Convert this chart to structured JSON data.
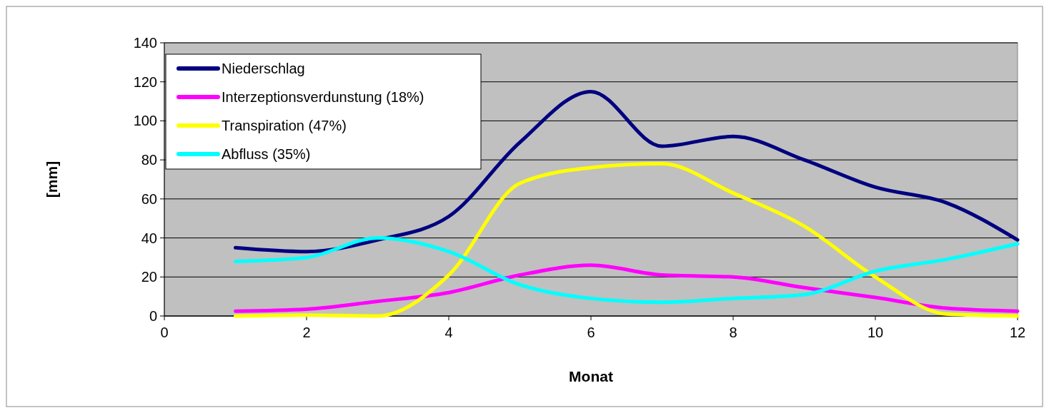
{
  "chart_data": {
    "type": "line",
    "xlabel": "Monat",
    "ylabel": "[mm]",
    "x": [
      1,
      2,
      3,
      4,
      5,
      6,
      7,
      8,
      9,
      10,
      11,
      12
    ],
    "xlim": [
      0,
      12
    ],
    "xticks": [
      0,
      2,
      4,
      6,
      8,
      10,
      12
    ],
    "ylim": [
      0,
      140
    ],
    "yticks": [
      0,
      20,
      40,
      60,
      80,
      100,
      120,
      140
    ],
    "grid": "y",
    "legend": "top left",
    "marker": "none",
    "line_style": "solid",
    "series": [
      {
        "name": "Niederschlag",
        "color": "#000080",
        "values": [
          35,
          33,
          39,
          51,
          89,
          115,
          87,
          92,
          80,
          66,
          58,
          39
        ]
      },
      {
        "name": "Interzeptionsverdunstung (18%)",
        "color": "#ff00ff",
        "values": [
          2.5,
          3.5,
          7.5,
          12,
          21,
          26,
          21,
          20,
          14.5,
          9.5,
          4,
          2.5
        ]
      },
      {
        "name": "Transpiration (47%)",
        "color": "#ffff00",
        "values": [
          0,
          0.5,
          0,
          21,
          68,
          76,
          78,
          63,
          46,
          20,
          1,
          0
        ]
      },
      {
        "name": "Abfluss (35%)",
        "color": "#00ffff",
        "values": [
          28,
          30,
          40,
          33,
          16,
          9,
          7,
          9,
          11,
          23,
          29,
          37
        ]
      }
    ]
  }
}
